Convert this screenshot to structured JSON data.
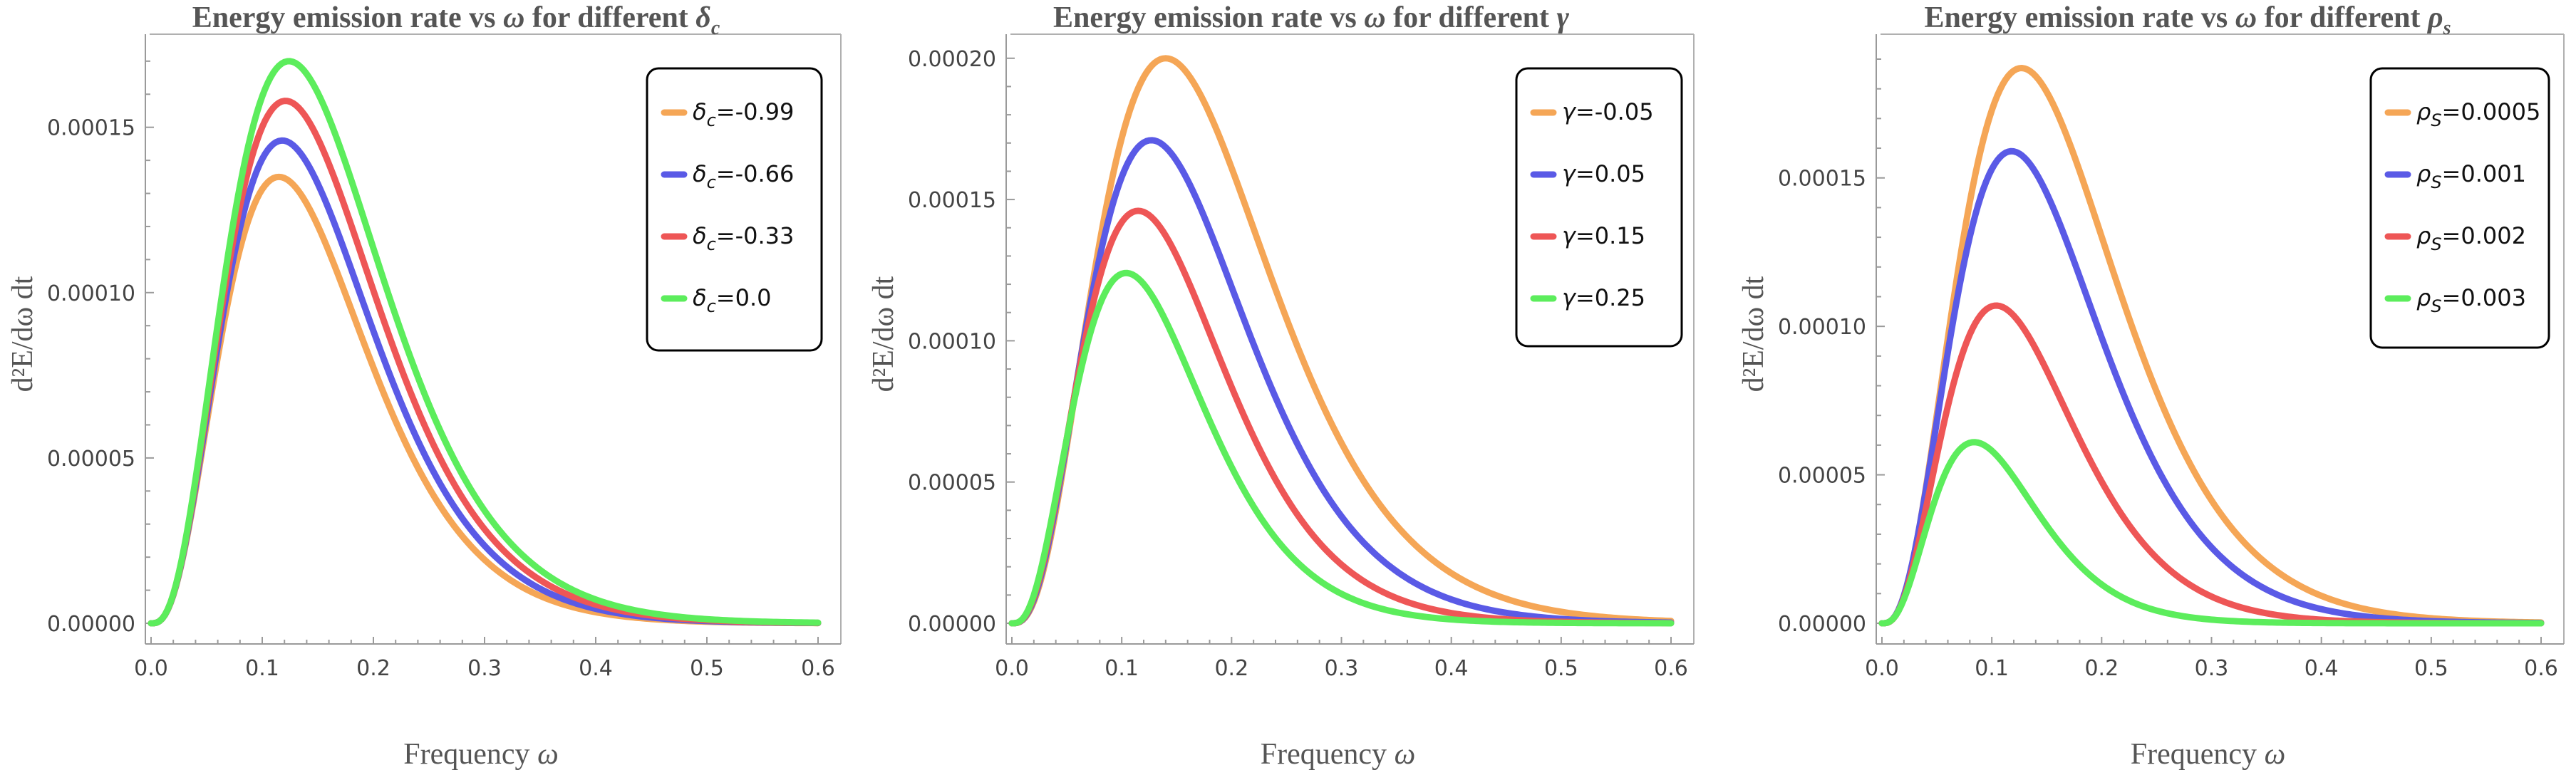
{
  "chart_data": [
    {
      "type": "line",
      "title": {
        "prefix": "Energy emission rate vs ",
        "var": "ω",
        "middle": " for different ",
        "param": "δ",
        "param_sub": "c"
      },
      "xlabel": {
        "text": "Frequency ",
        "var": "ω"
      },
      "ylabel": "d²E/dω dt",
      "xlim": [
        0,
        0.6
      ],
      "ylim": [
        -6.9e-06,
        0.000176
      ],
      "x_ticks": [
        0.0,
        0.1,
        0.2,
        0.3,
        0.4,
        0.5,
        0.6
      ],
      "x_tick_labels": [
        "0.0",
        "0.1",
        "0.2",
        "0.3",
        "0.4",
        "0.5",
        "0.6"
      ],
      "y_ticks": [
        0.0,
        5e-05,
        0.0001,
        0.00015
      ],
      "y_tick_labels": [
        "0.00000",
        "0.00005",
        "0.00010",
        "0.00015"
      ],
      "legend_position": "top-right",
      "series": [
        {
          "name": "-0.99",
          "label": {
            "sym": "δ",
            "sub": "c",
            "val": "=-0.99"
          },
          "color": "#f5a656",
          "peak_x": 0.115,
          "peak_y": 0.000135
        },
        {
          "name": "-0.66",
          "label": {
            "sym": "δ",
            "sub": "c",
            "val": "=-0.66"
          },
          "color": "#5a5ae6",
          "peak_x": 0.118,
          "peak_y": 0.000146
        },
        {
          "name": "-0.33",
          "label": {
            "sym": "δ",
            "sub": "c",
            "val": "=-0.33"
          },
          "color": "#ee5656",
          "peak_x": 0.121,
          "peak_y": 0.000158
        },
        {
          "name": "0.0",
          "label": {
            "sym": "δ",
            "sub": "c",
            "val": "=0.0"
          },
          "color": "#5ced5c",
          "peak_x": 0.124,
          "peak_y": 0.00017
        }
      ]
    },
    {
      "type": "line",
      "title": {
        "prefix": "Energy emission rate vs ",
        "var": "ω",
        "middle": " for different ",
        "param": "γ",
        "param_sub": ""
      },
      "xlabel": {
        "text": "Frequency ",
        "var": "ω"
      },
      "ylabel": "d²E/dω dt",
      "xlim": [
        0,
        0.6
      ],
      "ylim": [
        -6.9e-06,
        0.000206
      ],
      "x_ticks": [
        0.0,
        0.1,
        0.2,
        0.3,
        0.4,
        0.5,
        0.6
      ],
      "x_tick_labels": [
        "0.0",
        "0.1",
        "0.2",
        "0.3",
        "0.4",
        "0.5",
        "0.6"
      ],
      "y_ticks": [
        0.0,
        5e-05,
        0.0001,
        0.00015,
        0.0002
      ],
      "y_tick_labels": [
        "0.00000",
        "0.00005",
        "0.00010",
        "0.00015",
        "0.00020"
      ],
      "legend_position": "top-right",
      "series": [
        {
          "name": "-0.05",
          "label": {
            "sym": "γ",
            "sub": "",
            "val": "=-0.05"
          },
          "color": "#f5a656",
          "peak_x": 0.14,
          "peak_y": 0.0002
        },
        {
          "name": "0.05",
          "label": {
            "sym": "γ",
            "sub": "",
            "val": "=0.05"
          },
          "color": "#5a5ae6",
          "peak_x": 0.127,
          "peak_y": 0.000171
        },
        {
          "name": "0.15",
          "label": {
            "sym": "γ",
            "sub": "",
            "val": "=0.15"
          },
          "color": "#ee5656",
          "peak_x": 0.115,
          "peak_y": 0.000146
        },
        {
          "name": "0.25",
          "label": {
            "sym": "γ",
            "sub": "",
            "val": "=0.25"
          },
          "color": "#5ced5c",
          "peak_x": 0.104,
          "peak_y": 0.000124
        }
      ]
    },
    {
      "type": "line",
      "title": {
        "prefix": "Energy emission rate vs ",
        "var": "ω",
        "middle": " for different ",
        "param": "ρ",
        "param_sub": "s"
      },
      "xlabel": {
        "text": "Frequency ",
        "var": "ω"
      },
      "ylabel": "d²E/dω dt",
      "xlim": [
        0,
        0.6
      ],
      "ylim": [
        -6.9e-06,
        0.000196
      ],
      "x_ticks": [
        0.0,
        0.1,
        0.2,
        0.3,
        0.4,
        0.5,
        0.6
      ],
      "x_tick_labels": [
        "0.0",
        "0.1",
        "0.2",
        "0.3",
        "0.4",
        "0.5",
        "0.6"
      ],
      "y_ticks": [
        0.0,
        5e-05,
        0.0001,
        0.00015
      ],
      "y_tick_labels": [
        "0.00000",
        "0.00005",
        "0.00010",
        "0.00015"
      ],
      "legend_position": "top-right",
      "series": [
        {
          "name": "0.0005",
          "label": {
            "sym": "ρ",
            "sub": "S",
            "val": "=0.0005"
          },
          "color": "#f5a656",
          "peak_x": 0.127,
          "peak_y": 0.000187
        },
        {
          "name": "0.001",
          "label": {
            "sym": "ρ",
            "sub": "S",
            "val": "=0.001"
          },
          "color": "#5a5ae6",
          "peak_x": 0.118,
          "peak_y": 0.000159
        },
        {
          "name": "0.002",
          "label": {
            "sym": "ρ",
            "sub": "S",
            "val": "=0.002"
          },
          "color": "#ee5656",
          "peak_x": 0.104,
          "peak_y": 0.000107
        },
        {
          "name": "0.003",
          "label": {
            "sym": "ρ",
            "sub": "S",
            "val": "=0.003"
          },
          "color": "#5ced5c",
          "peak_x": 0.084,
          "peak_y": 6.1e-05
        }
      ]
    }
  ]
}
